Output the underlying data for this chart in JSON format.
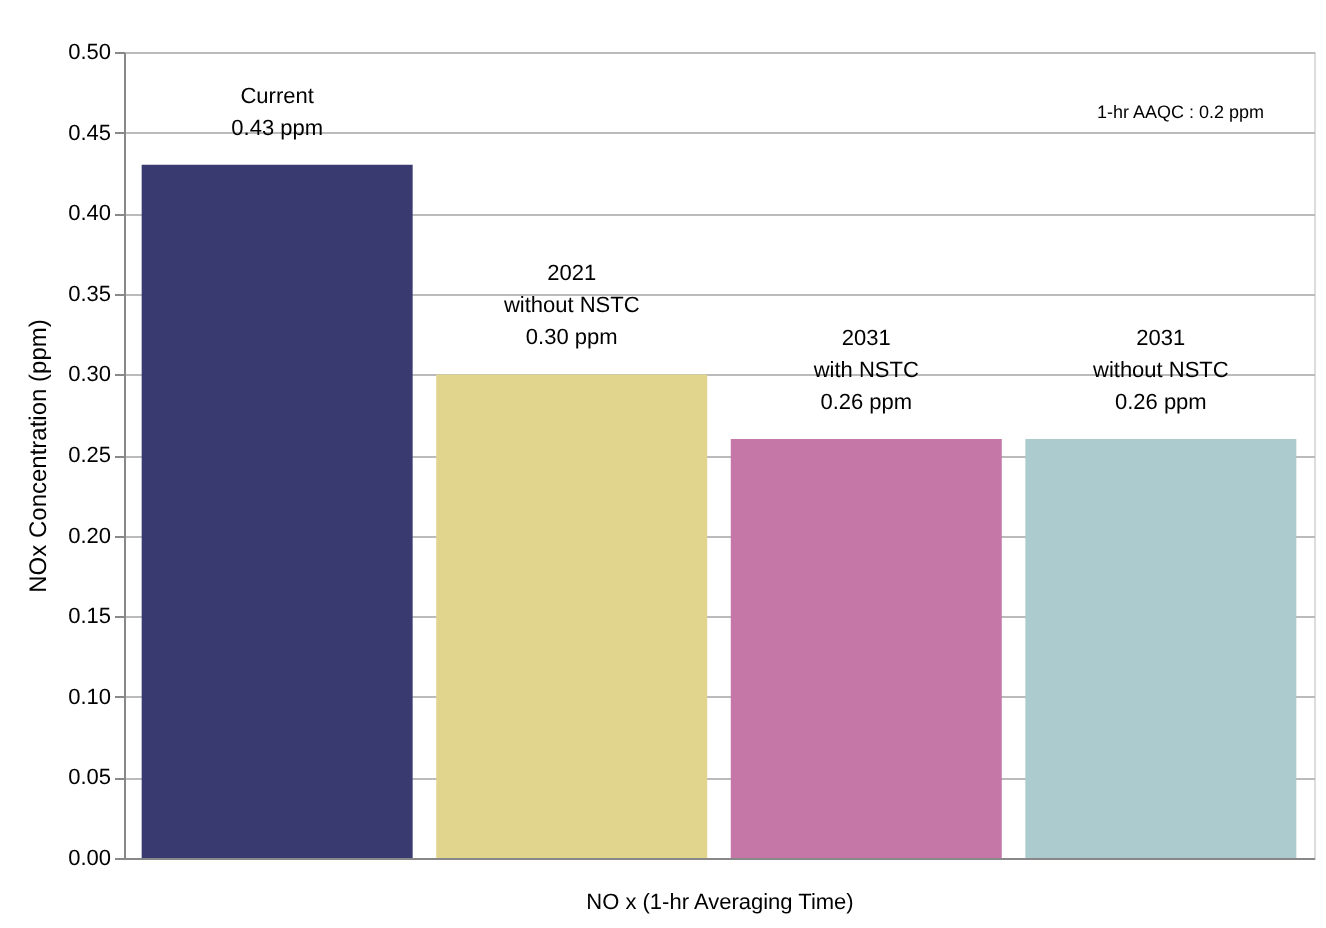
{
  "chart_data": {
    "type": "bar",
    "categories": [
      null,
      null,
      null,
      null
    ],
    "values": [
      0.43,
      0.3,
      0.26,
      0.26
    ],
    "colors": [
      "#393a6f",
      "#e1d58e",
      "#c577a7",
      "#accbcf"
    ],
    "value_labels": [
      "Current\n0.43 ppm",
      "2021\nwithout NSTC\n0.30 ppm",
      "2031\nwith NSTC\n0.26 ppm",
      "2031\nwithout NSTC\n0.26 ppm"
    ],
    "xlabel": "NO x (1-hr Averaging Time)",
    "ylabel": "NOx Concentration (ppm)",
    "annotations": [
      "1-hr AAQC : 0.2 ppm"
    ],
    "ylim": [
      0,
      0.5
    ],
    "yticks": [
      {
        "value": 0,
        "label": "0.00"
      },
      0.05,
      {
        "value": 0.1,
        "label": "0.10"
      },
      0.15,
      {
        "value": 0.2,
        "label": "0.20"
      },
      0.25,
      {
        "value": 0.3,
        "label": "0.30"
      },
      0.35,
      {
        "value": 0.4,
        "label": "0.40"
      },
      0.45,
      {
        "value": 0.5,
        "label": "0.50"
      }
    ],
    "grid": "y",
    "legend": false
  }
}
